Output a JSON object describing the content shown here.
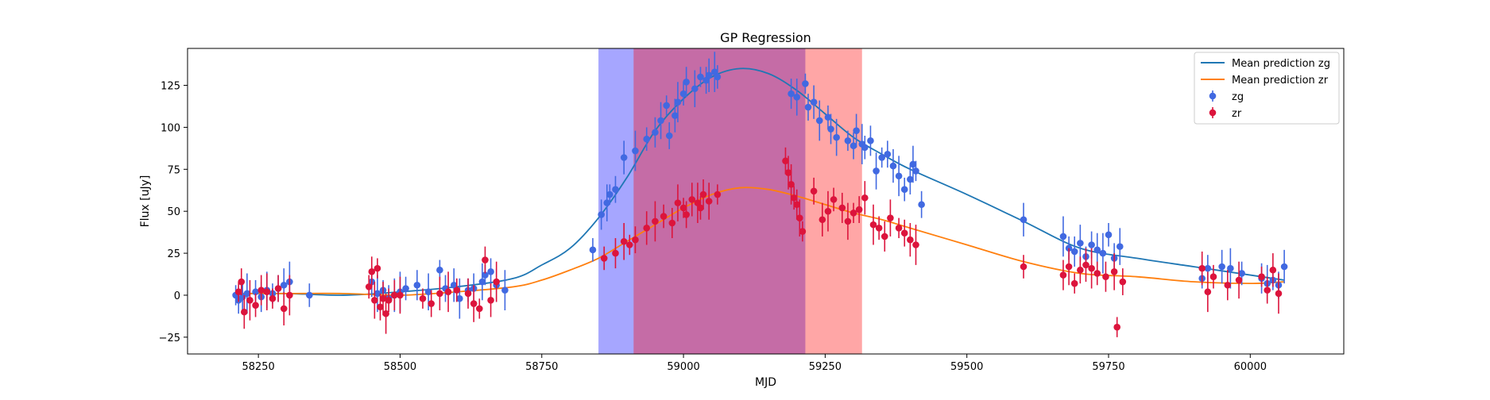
{
  "chart_data": {
    "type": "scatter",
    "title": "GP Regression",
    "xlabel": "MJD",
    "ylabel": "Flux [uJy]",
    "xlim": [
      58125,
      60165
    ],
    "ylim": [
      -35,
      147
    ],
    "xticks": [
      58250,
      58500,
      58750,
      59000,
      59250,
      59500,
      59750,
      60000
    ],
    "yticks": [
      -25,
      0,
      25,
      50,
      75,
      100,
      125
    ],
    "grid": false,
    "legend_position": "top-right",
    "colors": {
      "zg_line": "#1f77b4",
      "zr_line": "#ff7f0e",
      "zg_points": "#4169e1",
      "zr_points": "#dc143c",
      "span_blue": "#0000ff",
      "span_red": "#ff0000"
    },
    "shaded_regions": [
      {
        "x": [
          58850,
          59215
        ],
        "color": "blue"
      },
      {
        "x": [
          58912,
          59315
        ],
        "color": "red"
      }
    ],
    "series": [
      {
        "name": "Mean prediction zg",
        "type": "line",
        "x": [
          58210,
          58300,
          58400,
          58500,
          58600,
          58700,
          58750,
          58800,
          58850,
          58900,
          58950,
          59000,
          59050,
          59100,
          59150,
          59200,
          59250,
          59300,
          59350,
          59400,
          59500,
          59600,
          59700,
          59800,
          59900,
          60000,
          60060
        ],
        "y": [
          1,
          1,
          0,
          2,
          5,
          10,
          18,
          28,
          46,
          70,
          98,
          117,
          130,
          135,
          132,
          122,
          108,
          94,
          84,
          75,
          60,
          44,
          28,
          22,
          17,
          12,
          9
        ]
      },
      {
        "name": "Mean prediction zr",
        "type": "line",
        "x": [
          58210,
          58300,
          58400,
          58500,
          58600,
          58700,
          58750,
          58800,
          58850,
          58900,
          58950,
          59000,
          59050,
          59100,
          59150,
          59200,
          59250,
          59300,
          59350,
          59400,
          59500,
          59600,
          59700,
          59800,
          59900,
          60000,
          60060
        ],
        "y": [
          1,
          1,
          1,
          0,
          2,
          5,
          9,
          15,
          22,
          32,
          42,
          52,
          60,
          64,
          63,
          59,
          54,
          49,
          45,
          40,
          30,
          20,
          13,
          11,
          8,
          7,
          8
        ]
      },
      {
        "name": "zg",
        "type": "errorbar",
        "x": [
          58210,
          58215,
          58222,
          58230,
          58245,
          58255,
          58265,
          58275,
          58285,
          58295,
          58305,
          58340,
          58450,
          58460,
          58470,
          58480,
          58490,
          58500,
          58510,
          58530,
          58550,
          58570,
          58580,
          58595,
          58605,
          58620,
          58630,
          58645,
          58650,
          58660,
          58670,
          58685,
          58840,
          58855,
          58865,
          58870,
          58880,
          58895,
          58915,
          58935,
          58950,
          58960,
          58970,
          58975,
          58985,
          58990,
          59000,
          59005,
          59020,
          59030,
          59040,
          59045,
          59055,
          59060,
          59190,
          59200,
          59215,
          59220,
          59230,
          59240,
          59255,
          59260,
          59270,
          59290,
          59300,
          59305,
          59315,
          59320,
          59330,
          59340,
          59350,
          59360,
          59370,
          59380,
          59390,
          59400,
          59405,
          59410,
          59420,
          59600,
          59670,
          59680,
          59690,
          59700,
          59710,
          59720,
          59730,
          59740,
          59750,
          59760,
          59770,
          59915,
          59925,
          59950,
          59965,
          59985,
          60020,
          60030,
          60040,
          60050,
          60060
        ],
        "y": [
          0,
          -3,
          -1,
          1,
          2,
          -1,
          3,
          1,
          4,
          6,
          8,
          0,
          8,
          1,
          3,
          -2,
          0,
          2,
          4,
          6,
          2,
          15,
          4,
          6,
          -2,
          3,
          4,
          8,
          12,
          14,
          6,
          3,
          27,
          48,
          55,
          60,
          63,
          82,
          86,
          93,
          97,
          104,
          113,
          95,
          107,
          115,
          120,
          127,
          123,
          130,
          128,
          131,
          133,
          130,
          120,
          118,
          126,
          112,
          115,
          104,
          106,
          99,
          94,
          92,
          89,
          98,
          90,
          88,
          92,
          74,
          82,
          84,
          77,
          71,
          63,
          69,
          78,
          74,
          54,
          45,
          35,
          28,
          26,
          31,
          23,
          30,
          27,
          25,
          36,
          22,
          29,
          10,
          16,
          17,
          16,
          13,
          10,
          7,
          9,
          6,
          17
        ]
      },
      {
        "name": "zr",
        "type": "errorbar",
        "x": [
          58215,
          58220,
          58225,
          58235,
          58245,
          58255,
          58265,
          58275,
          58285,
          58295,
          58305,
          58445,
          58450,
          58455,
          58460,
          58465,
          58470,
          58475,
          58480,
          58490,
          58500,
          58540,
          58555,
          58570,
          58585,
          58600,
          58620,
          58630,
          58640,
          58650,
          58660,
          58670,
          58860,
          58880,
          58895,
          58905,
          58915,
          58935,
          58950,
          58965,
          58980,
          58990,
          59000,
          59005,
          59015,
          59025,
          59030,
          59035,
          59045,
          59060,
          59180,
          59185,
          59190,
          59195,
          59200,
          59205,
          59210,
          59230,
          59245,
          59255,
          59265,
          59280,
          59290,
          59300,
          59310,
          59320,
          59335,
          59345,
          59355,
          59365,
          59380,
          59390,
          59400,
          59410,
          59600,
          59670,
          59680,
          59690,
          59700,
          59710,
          59720,
          59730,
          59745,
          59760,
          59765,
          59775,
          59915,
          59925,
          59935,
          59960,
          59980,
          60020,
          60030,
          60040,
          60050
        ],
        "y": [
          2,
          8,
          -10,
          -3,
          -6,
          3,
          2,
          -2,
          4,
          -8,
          0,
          5,
          14,
          -3,
          16,
          -7,
          -2,
          -11,
          -3,
          0,
          0,
          -2,
          -5,
          1,
          2,
          3,
          1,
          -5,
          -8,
          21,
          -3,
          8,
          22,
          25,
          32,
          30,
          33,
          40,
          44,
          47,
          43,
          55,
          52,
          48,
          57,
          55,
          52,
          60,
          56,
          60,
          80,
          73,
          66,
          58,
          54,
          46,
          38,
          62,
          45,
          50,
          57,
          52,
          44,
          49,
          51,
          58,
          42,
          40,
          35,
          46,
          40,
          37,
          33,
          30,
          17,
          12,
          17,
          7,
          15,
          18,
          16,
          13,
          11,
          14,
          -19,
          8,
          16,
          2,
          11,
          6,
          9,
          11,
          3,
          15,
          1
        ]
      }
    ]
  }
}
